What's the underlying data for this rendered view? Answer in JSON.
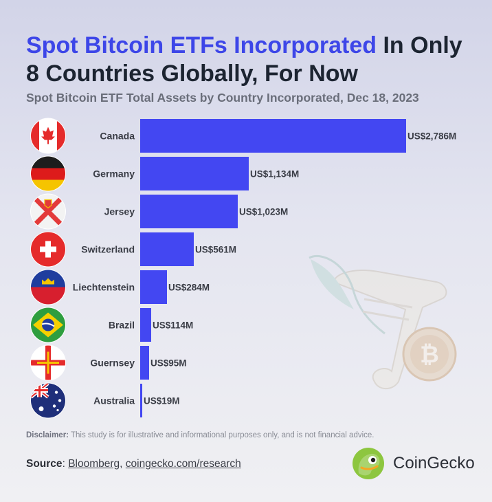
{
  "title": {
    "accent": "Spot Bitcoin ETFs Incorporated",
    "rest": " In Only 8 Countries Globally, For Now"
  },
  "subtitle": "Spot Bitcoin ETF Total Assets by Country Incorporated, Dec 18, 2023",
  "colors": {
    "bar": "#4347f2",
    "title_accent": "#3d46e8",
    "title": "#1c2431"
  },
  "chart_data": {
    "type": "bar",
    "orientation": "horizontal",
    "title": "Spot Bitcoin ETF Total Assets by Country Incorporated, Dec 18, 2023",
    "unit": "US$ millions",
    "categories": [
      "Canada",
      "Germany",
      "Jersey",
      "Switzerland",
      "Liechtenstein",
      "Brazil",
      "Guernsey",
      "Australia"
    ],
    "values": [
      2786,
      1134,
      1023,
      561,
      284,
      114,
      95,
      19
    ],
    "value_labels": [
      "US$2,786M",
      "US$1,134M",
      "US$1,023M",
      "US$561M",
      "US$284M",
      "US$114M",
      "US$95M",
      "US$19M"
    ],
    "flags": [
      "canada-flag-icon",
      "germany-flag-icon",
      "jersey-flag-icon",
      "switzerland-flag-icon",
      "liechtenstein-flag-icon",
      "brazil-flag-icon",
      "guernsey-flag-icon",
      "australia-flag-icon"
    ],
    "xlim": [
      0,
      2786
    ],
    "grid": false,
    "legend": "none"
  },
  "disclaimer": {
    "label": "Disclaimer:",
    "text": " This study is for illustrative and informational purposes only, and is not financial advice."
  },
  "source": {
    "label": "Source",
    "sep1": ": ",
    "link1": "Bloomberg",
    "sep2": ", ",
    "link2": "coingecko.com/research"
  },
  "brand": {
    "name": "CoinGecko",
    "logo": "coingecko-logo-icon"
  }
}
